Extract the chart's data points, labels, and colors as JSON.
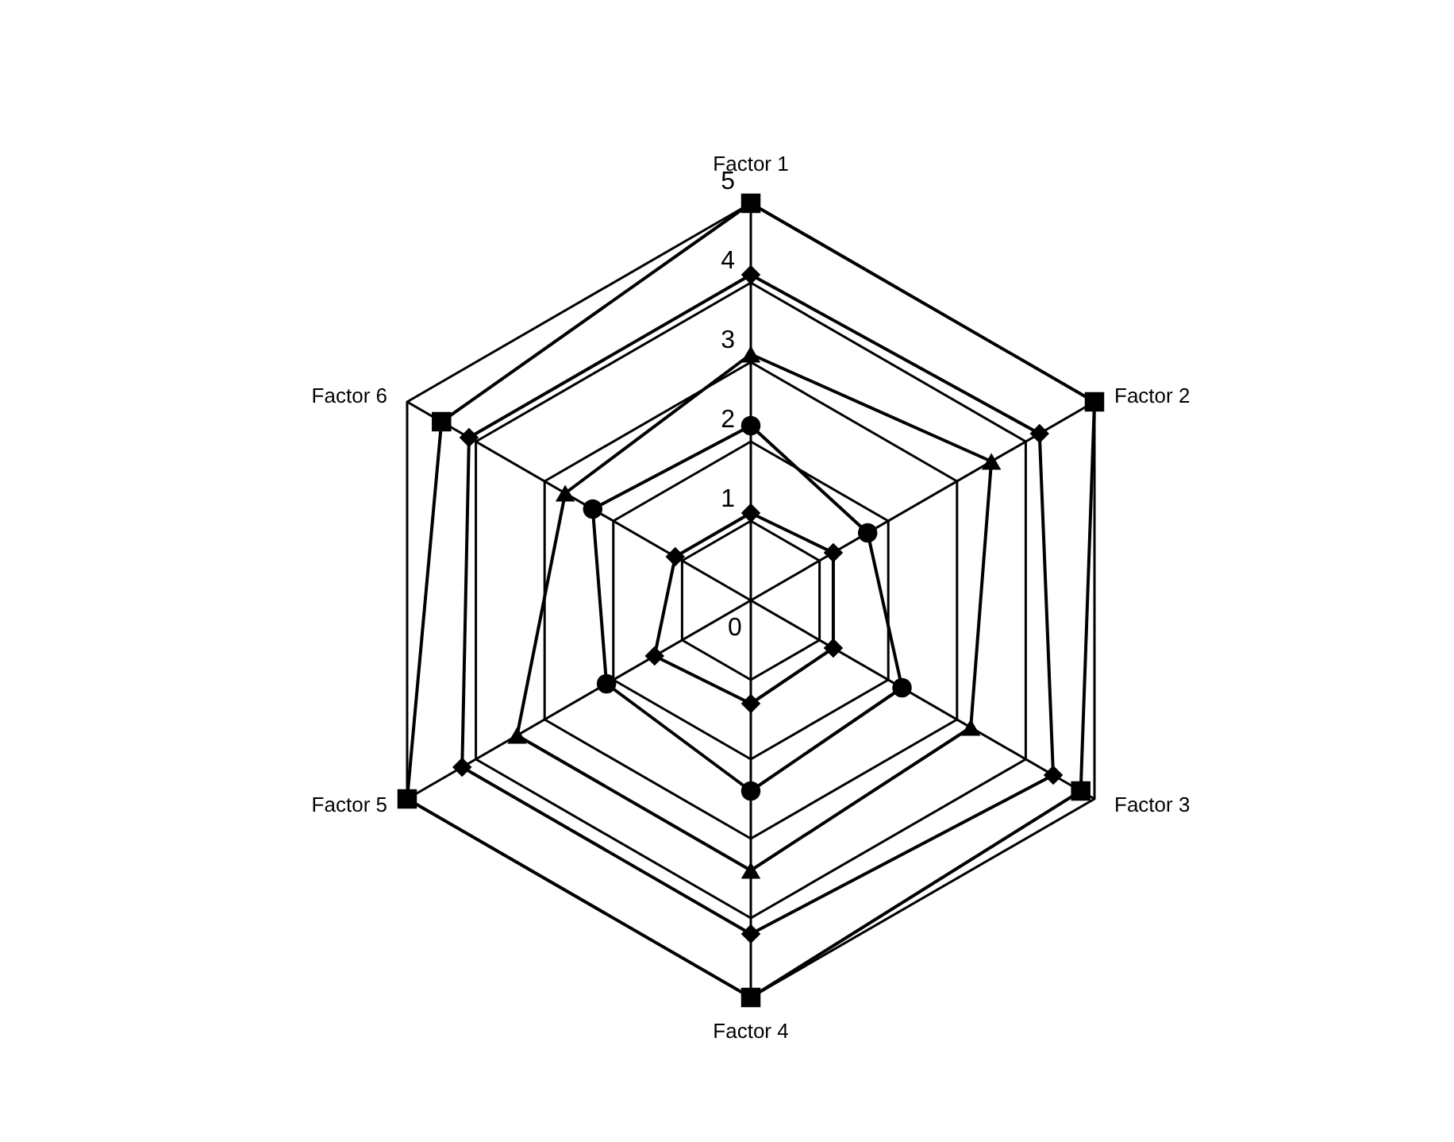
{
  "chart_data": {
    "type": "radar",
    "categories": [
      "Factor 1",
      "Factor 2",
      "Factor 3",
      "Factor 4",
      "Factor 5",
      "Factor 6"
    ],
    "ylim": [
      0,
      5
    ],
    "yticks": [
      0,
      1,
      2,
      3,
      4,
      5
    ],
    "grid": true,
    "series": [
      {
        "color": "#000000",
        "marker": "diamond",
        "values": [
          1.1,
          1.2,
          1.2,
          1.3,
          1.4,
          1.1
        ]
      },
      {
        "color": "#000000",
        "marker": "circle",
        "values": [
          2.2,
          1.7,
          2.2,
          2.4,
          2.1,
          2.3
        ]
      },
      {
        "color": "#000000",
        "marker": "triangle",
        "values": [
          3.1,
          3.5,
          3.2,
          3.4,
          3.4,
          2.7
        ]
      },
      {
        "color": "#000000",
        "marker": "diamond",
        "values": [
          4.1,
          4.2,
          4.4,
          4.2,
          4.2,
          4.1
        ]
      },
      {
        "color": "#000000",
        "marker": "square",
        "values": [
          5,
          5,
          4.8,
          5,
          5,
          4.5
        ]
      }
    ]
  }
}
